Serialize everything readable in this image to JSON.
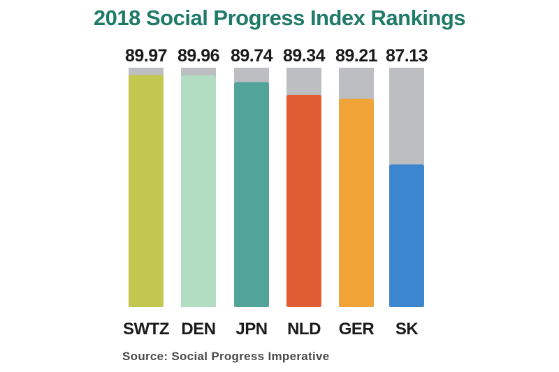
{
  "chart_data": {
    "type": "bar",
    "title": "2018 Social Progress Index Rankings",
    "categories": [
      "SWTZ",
      "DEN",
      "JPN",
      "NLD",
      "GER",
      "SK"
    ],
    "values": [
      89.97,
      89.96,
      89.74,
      89.34,
      89.21,
      87.13
    ],
    "value_labels": [
      "89.97",
      "89.96",
      "89.74",
      "89.34",
      "89.21",
      "87.13"
    ],
    "bar_colors": [
      "#c2c84f",
      "#b2ddc2",
      "#52a39a",
      "#e05d33",
      "#f0a438",
      "#3c86d0"
    ],
    "track_color": "#bcbec1",
    "title_color": "#1f7a67",
    "label_color": "#1a1a1a",
    "ylim": [
      82.6,
      90.2
    ],
    "source": "Source: Social Progress Imperative",
    "xlabel": "",
    "ylabel": "",
    "grid": false,
    "legend": "none"
  }
}
